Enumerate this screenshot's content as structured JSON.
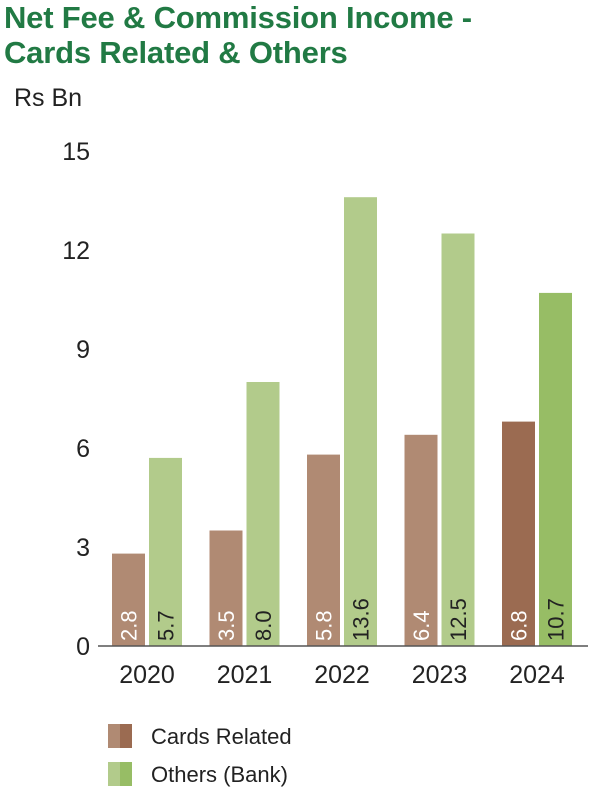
{
  "chart_data": {
    "type": "bar",
    "title_lines": [
      "Net Fee & Commission Income -",
      "Cards Related & Others"
    ],
    "ylabel": "Rs Bn",
    "xlabel": "",
    "ylim": [
      0,
      15
    ],
    "yticks": [
      "0",
      "3",
      "6",
      "9",
      "12",
      "15"
    ],
    "categories": [
      "2020",
      "2021",
      "2022",
      "2023",
      "2024"
    ],
    "series": [
      {
        "name": "Cards Related",
        "values": [
          2.8,
          3.5,
          5.8,
          6.4,
          6.8
        ],
        "labels": [
          "2.8",
          "3.5",
          "5.8",
          "6.4",
          "6.8"
        ],
        "color": "#b08a73",
        "highlight_color": "#9b6b51"
      },
      {
        "name": "Others (Bank)",
        "values": [
          5.7,
          8.0,
          13.6,
          12.5,
          10.7
        ],
        "labels": [
          "5.7",
          "8.0",
          "13.6",
          "12.5",
          "10.7"
        ],
        "color": "#b2cb8b",
        "highlight_color": "#97bd65"
      }
    ],
    "highlight_category": "2024",
    "grid": false,
    "legend_position": "bottom-left",
    "colors": {
      "title": "#217a44",
      "axis": "#555555",
      "text": "#222222"
    }
  }
}
